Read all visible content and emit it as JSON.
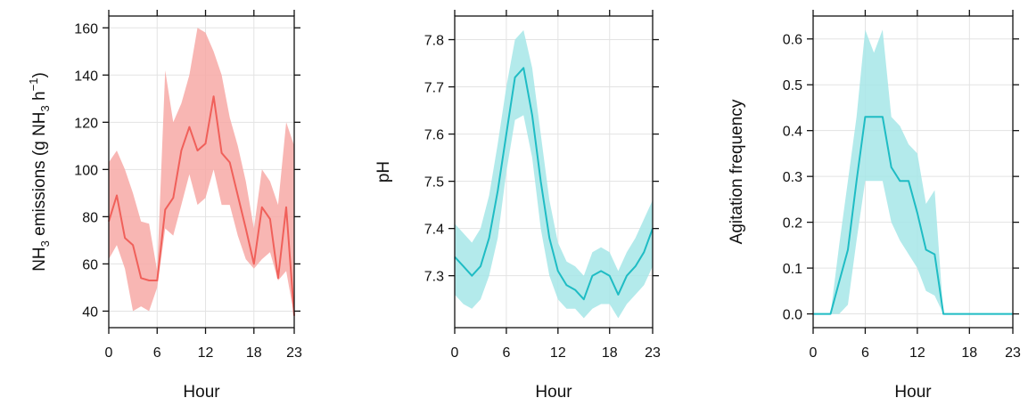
{
  "chart_data": [
    {
      "type": "line",
      "title": "",
      "xlabel": "Hour",
      "ylabel_parts": [
        "NH",
        "3",
        " emissions (g NH",
        "3",
        " h",
        "−1",
        ")"
      ],
      "xlim": [
        0,
        23
      ],
      "ylim": [
        33,
        165
      ],
      "xticks": [
        0,
        6,
        12,
        18,
        23
      ],
      "yticks": [
        40,
        60,
        80,
        100,
        120,
        140,
        160
      ],
      "grid": true,
      "color": "#f0605a",
      "band_color": "#f7a9a6",
      "series": [
        {
          "x": [
            0,
            1,
            2,
            3,
            4,
            5,
            6,
            7,
            8,
            9,
            10,
            11,
            12,
            13,
            14,
            15,
            16,
            17,
            18,
            19,
            20,
            21,
            22,
            23
          ],
          "values": [
            78,
            89,
            71,
            68,
            54,
            53,
            53,
            83,
            88,
            108,
            118,
            108,
            111,
            131,
            107,
            103,
            89,
            75,
            60,
            84,
            79,
            54,
            84,
            38
          ],
          "lower": [
            62,
            68,
            58,
            40,
            42,
            40,
            50,
            75,
            72,
            85,
            98,
            85,
            88,
            100,
            85,
            85,
            72,
            62,
            58,
            62,
            65,
            53,
            57,
            38
          ],
          "upper": [
            103,
            108,
            100,
            90,
            78,
            77,
            57,
            142,
            120,
            128,
            140,
            160,
            158,
            150,
            140,
            122,
            110,
            95,
            75,
            100,
            95,
            85,
            120,
            110
          ]
        }
      ]
    },
    {
      "type": "line",
      "title": "",
      "xlabel": "Hour",
      "ylabel_parts": [
        "pH"
      ],
      "xlim": [
        0,
        23
      ],
      "ylim": [
        7.19,
        7.85
      ],
      "xticks": [
        0,
        6,
        12,
        18,
        23
      ],
      "yticks": [
        7.3,
        7.4,
        7.5,
        7.6,
        7.7,
        7.8
      ],
      "grid": true,
      "color": "#1fbcc4",
      "band_color": "#a6e6e8",
      "series": [
        {
          "x": [
            0,
            1,
            2,
            3,
            4,
            5,
            6,
            7,
            8,
            9,
            10,
            11,
            12,
            13,
            14,
            15,
            16,
            17,
            18,
            19,
            20,
            21,
            22,
            23
          ],
          "values": [
            7.34,
            7.32,
            7.3,
            7.32,
            7.38,
            7.48,
            7.6,
            7.72,
            7.74,
            7.64,
            7.5,
            7.38,
            7.31,
            7.28,
            7.27,
            7.25,
            7.3,
            7.31,
            7.3,
            7.26,
            7.3,
            7.32,
            7.35,
            7.4
          ],
          "lower": [
            7.26,
            7.24,
            7.23,
            7.25,
            7.3,
            7.38,
            7.52,
            7.63,
            7.64,
            7.55,
            7.4,
            7.3,
            7.25,
            7.23,
            7.23,
            7.21,
            7.23,
            7.24,
            7.24,
            7.21,
            7.24,
            7.26,
            7.28,
            7.32
          ],
          "upper": [
            7.41,
            7.39,
            7.37,
            7.4,
            7.47,
            7.58,
            7.7,
            7.8,
            7.82,
            7.74,
            7.6,
            7.46,
            7.37,
            7.33,
            7.32,
            7.3,
            7.35,
            7.36,
            7.35,
            7.31,
            7.35,
            7.38,
            7.42,
            7.46
          ]
        }
      ]
    },
    {
      "type": "line",
      "title": "",
      "xlabel": "Hour",
      "ylabel_parts": [
        "Agitation frequency"
      ],
      "xlim": [
        0,
        23
      ],
      "ylim": [
        -0.03,
        0.65
      ],
      "xticks": [
        0,
        6,
        12,
        18,
        23
      ],
      "yticks": [
        0.0,
        0.1,
        0.2,
        0.3,
        0.4,
        0.5,
        0.6
      ],
      "ytick_labels": [
        "0.0",
        "0.1",
        "0.2",
        "0.3",
        "0.4",
        "0.5",
        "0.6"
      ],
      "grid": true,
      "color": "#1fbcc4",
      "band_color": "#a6e6e8",
      "series": [
        {
          "x": [
            0,
            1,
            2,
            3,
            4,
            5,
            6,
            7,
            8,
            9,
            10,
            11,
            12,
            13,
            14,
            15,
            16,
            17,
            18,
            19,
            20,
            21,
            22,
            23
          ],
          "values": [
            0,
            0,
            0,
            0.07,
            0.14,
            0.29,
            0.43,
            0.43,
            0.43,
            0.32,
            0.29,
            0.29,
            0.22,
            0.14,
            0.13,
            0,
            0,
            0,
            0,
            0,
            0,
            0,
            0,
            0
          ],
          "lower": [
            0,
            0,
            0,
            0.0,
            0.02,
            0.16,
            0.29,
            0.29,
            0.29,
            0.2,
            0.16,
            0.13,
            0.1,
            0.05,
            0.04,
            0,
            0,
            0,
            0,
            0,
            0,
            0,
            0,
            0
          ],
          "upper": [
            0,
            0,
            0,
            0.15,
            0.29,
            0.43,
            0.62,
            0.57,
            0.62,
            0.43,
            0.41,
            0.37,
            0.35,
            0.24,
            0.27,
            0,
            0,
            0,
            0,
            0,
            0,
            0,
            0,
            0
          ]
        }
      ]
    }
  ]
}
